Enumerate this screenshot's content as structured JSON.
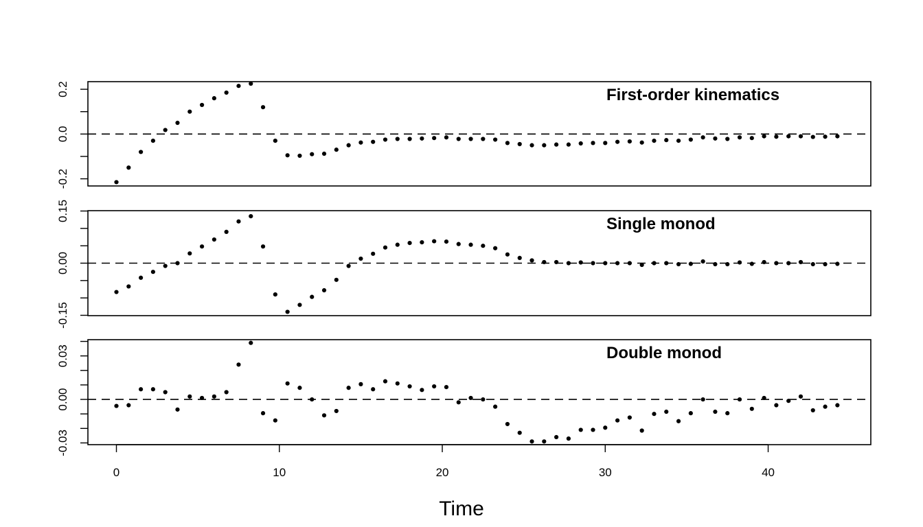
{
  "chart_data": {
    "type": "scatter",
    "xlabel": "Time",
    "x_ticks": [
      0,
      10,
      20,
      30,
      40
    ],
    "xlim": [
      -1.75,
      46.3
    ],
    "reference_line": 0,
    "x": [
      0.0,
      0.75,
      1.5,
      2.25,
      3.0,
      3.75,
      4.5,
      5.25,
      6.0,
      6.75,
      7.5,
      8.25,
      9.0,
      9.75,
      10.5,
      11.25,
      12.0,
      12.75,
      13.5,
      14.25,
      15.0,
      15.75,
      16.5,
      17.25,
      18.0,
      18.75,
      19.5,
      20.25,
      21.0,
      21.75,
      22.5,
      23.25,
      24.0,
      24.75,
      25.5,
      26.25,
      27.0,
      27.75,
      28.5,
      29.25,
      30.0,
      30.75,
      31.5,
      32.25,
      33.0,
      33.75,
      34.5,
      35.25,
      36.0,
      36.75,
      37.5,
      38.25,
      39.0,
      39.75,
      40.5,
      41.25,
      42.0,
      42.75,
      43.5,
      44.25
    ],
    "panels": [
      {
        "title": "First-order kinematics",
        "ylim": [
          -0.232,
          0.234
        ],
        "y_ticks": [
          -0.2,
          -0.1,
          0.0,
          0.1,
          0.2
        ],
        "y_tick_labels": [
          "-0.2",
          "",
          "0.0",
          "",
          "0.2"
        ],
        "y": [
          -0.215,
          -0.15,
          -0.08,
          -0.03,
          0.018,
          0.05,
          0.1,
          0.13,
          0.16,
          0.185,
          0.215,
          0.225,
          0.12,
          -0.03,
          -0.095,
          -0.097,
          -0.09,
          -0.088,
          -0.07,
          -0.05,
          -0.038,
          -0.035,
          -0.025,
          -0.022,
          -0.022,
          -0.02,
          -0.018,
          -0.015,
          -0.022,
          -0.022,
          -0.022,
          -0.025,
          -0.04,
          -0.045,
          -0.05,
          -0.05,
          -0.047,
          -0.047,
          -0.042,
          -0.04,
          -0.04,
          -0.035,
          -0.033,
          -0.038,
          -0.03,
          -0.027,
          -0.03,
          -0.025,
          -0.015,
          -0.02,
          -0.022,
          -0.015,
          -0.018,
          -0.01,
          -0.012,
          -0.01,
          -0.01,
          -0.013,
          -0.012,
          -0.01
        ]
      },
      {
        "title": "Single monod",
        "ylim": [
          -0.151,
          0.151
        ],
        "y_ticks": [
          -0.15,
          -0.1,
          -0.05,
          0.0,
          0.05,
          0.1,
          0.15
        ],
        "y_tick_labels": [
          "-0.15",
          "",
          "",
          "0.00",
          "",
          "",
          "0.15"
        ],
        "y": [
          -0.083,
          -0.067,
          -0.042,
          -0.025,
          -0.008,
          0.0,
          0.028,
          0.048,
          0.068,
          0.09,
          0.12,
          0.135,
          0.048,
          -0.09,
          -0.14,
          -0.12,
          -0.097,
          -0.078,
          -0.048,
          -0.008,
          0.013,
          0.027,
          0.045,
          0.053,
          0.058,
          0.06,
          0.063,
          0.062,
          0.055,
          0.053,
          0.05,
          0.043,
          0.025,
          0.015,
          0.008,
          0.003,
          0.003,
          0.0,
          0.002,
          0.0,
          0.0,
          0.0,
          0.0,
          -0.005,
          0.0,
          0.0,
          -0.003,
          -0.002,
          0.005,
          -0.003,
          -0.003,
          0.002,
          -0.002,
          0.003,
          0.0,
          0.0,
          0.003,
          -0.003,
          -0.003,
          -0.002
        ]
      },
      {
        "title": "Double monod",
        "ylim": [
          -0.0312,
          0.0412
        ],
        "y_ticks": [
          -0.03,
          -0.02,
          -0.01,
          0.0,
          0.01,
          0.02,
          0.03,
          0.04
        ],
        "y_tick_labels": [
          "-0.03",
          "",
          "",
          "0.00",
          "",
          "",
          "0.03",
          ""
        ],
        "y": [
          -0.0045,
          -0.004,
          0.007,
          0.007,
          0.005,
          -0.007,
          0.002,
          0.001,
          0.002,
          0.005,
          0.024,
          0.039,
          -0.0095,
          -0.0145,
          0.011,
          0.008,
          0.0,
          -0.011,
          -0.008,
          0.008,
          0.0105,
          0.007,
          0.0125,
          0.011,
          0.009,
          0.0065,
          0.009,
          0.0085,
          -0.002,
          0.001,
          0.0,
          -0.005,
          -0.017,
          -0.023,
          -0.029,
          -0.029,
          -0.026,
          -0.027,
          -0.021,
          -0.021,
          -0.0195,
          -0.0145,
          -0.0125,
          -0.0215,
          -0.01,
          -0.0085,
          -0.015,
          -0.0095,
          0.0,
          -0.0085,
          -0.0095,
          0.0,
          -0.0065,
          0.001,
          -0.004,
          -0.001,
          0.002,
          -0.0075,
          -0.005,
          -0.004
        ]
      }
    ]
  }
}
